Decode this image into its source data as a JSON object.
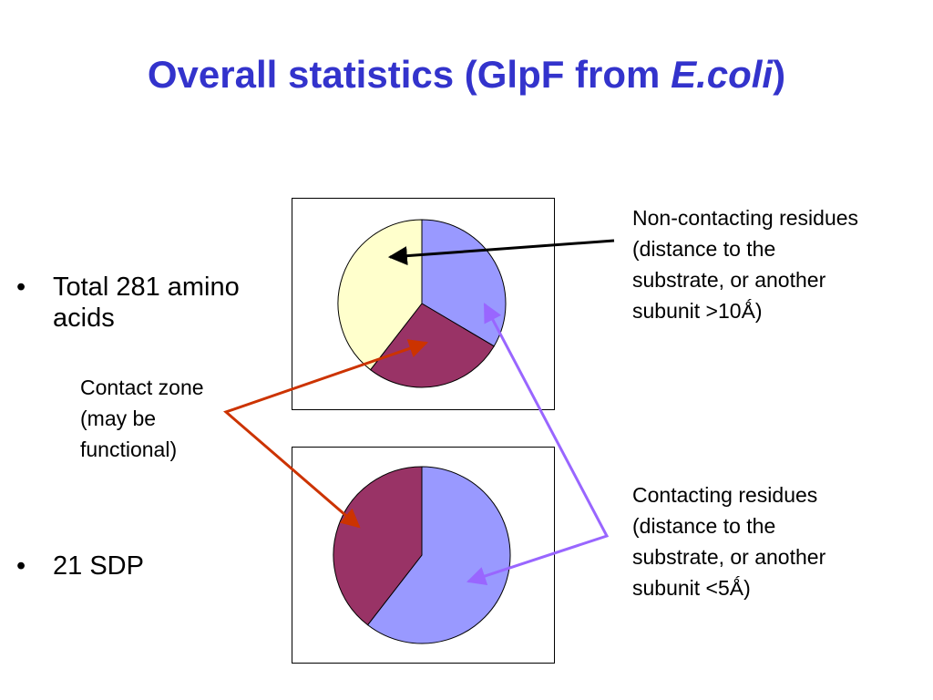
{
  "title": {
    "prefix": "Overall statistics (GlpF from ",
    "italic": "E.coli",
    "suffix": ")"
  },
  "bullets": [
    {
      "marker": "•",
      "text": "Total 281 amino acids"
    },
    {
      "marker": "•",
      "text": "21 SDP"
    }
  ],
  "notes": {
    "contact_zone": "Contact zone\n(may be\nfunctional)",
    "noncontacting": "Non-contacting residues\n(distance to the\nsubstrate, or another\nsubunit >10Ǻ)",
    "contacting": "Contacting residues\n(distance to the\nsubstrate, or another\nsubunit <5Ǻ)"
  },
  "colors": {
    "title": "#3333cc",
    "noncontacting": "#ffffcc",
    "contact_zone": "#993366",
    "contacting": "#9999ff",
    "arrow_black": "#000000",
    "arrow_red": "#cc3300",
    "arrow_violet": "#9966ff"
  },
  "chart_data": [
    {
      "type": "pie",
      "title": "",
      "start_angle_deg": 0,
      "direction": "clockwise",
      "slices": [
        {
          "key": "contacting",
          "value": 33.5,
          "color": "#9999ff"
        },
        {
          "key": "contact_zone",
          "value": 27.0,
          "color": "#993366"
        },
        {
          "key": "noncontacting",
          "value": 39.5,
          "color": "#ffffcc"
        }
      ]
    },
    {
      "type": "pie",
      "title": "",
      "start_angle_deg": 0,
      "direction": "clockwise",
      "slices": [
        {
          "key": "contacting",
          "value": 60.5,
          "color": "#9999ff"
        },
        {
          "key": "contact_zone",
          "value": 39.5,
          "color": "#993366"
        }
      ]
    }
  ]
}
